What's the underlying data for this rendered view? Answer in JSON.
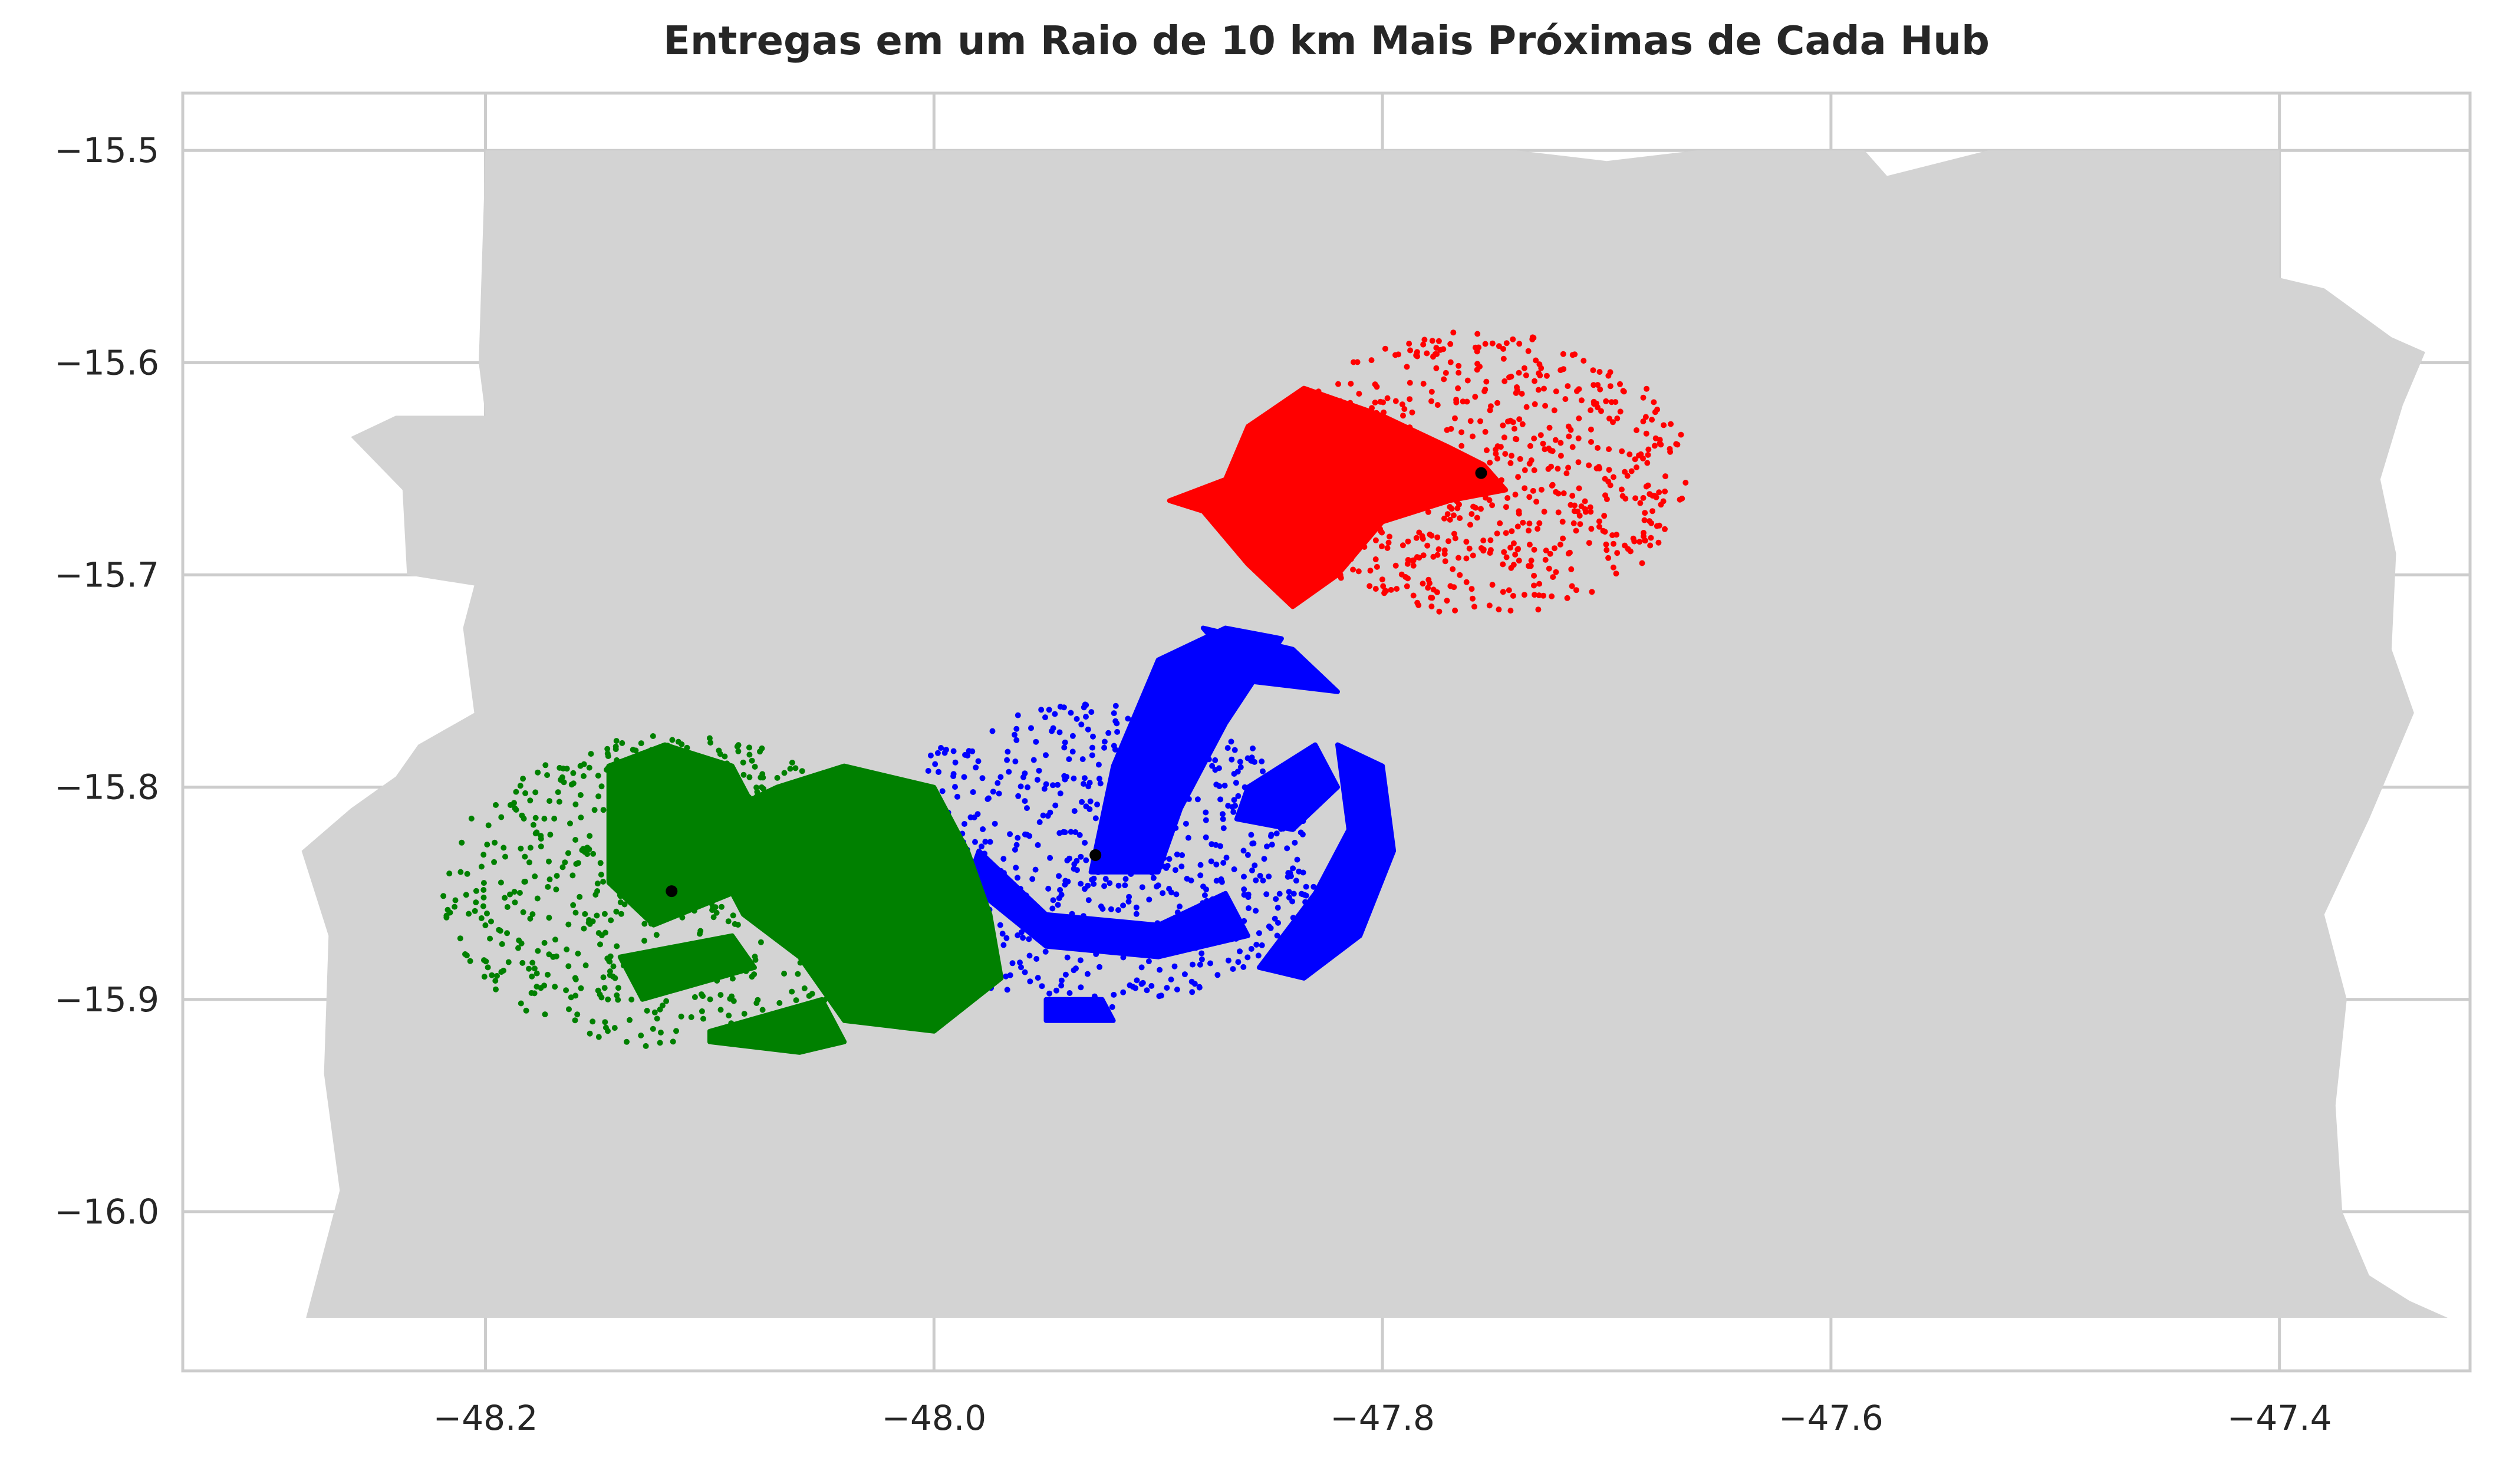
{
  "chart_data": {
    "type": "scatter",
    "title": "Entregas em um Raio de 10 km Mais Próximas de Cada Hub",
    "xlabel": "",
    "ylabel": "",
    "xlim": [
      -48.335,
      -47.315
    ],
    "ylim": [
      -16.075,
      -15.473
    ],
    "x_ticks": [
      -48.2,
      -48.0,
      -47.8,
      -47.6,
      -47.4
    ],
    "x_tick_labels": [
      "−48.2",
      "−48.0",
      "−47.8",
      "−47.6",
      "−47.4"
    ],
    "y_ticks": [
      -15.5,
      -15.6,
      -15.7,
      -15.8,
      -15.9,
      -16.0
    ],
    "y_tick_labels": [
      "−15.5",
      "−15.6",
      "−15.7",
      "−15.8",
      "−15.9",
      "−16.0"
    ],
    "grid": true,
    "region": {
      "color": "#d3d3d3",
      "boundary": [
        [
          -48.2,
          -15.5
        ],
        [
          -47.74,
          -15.5
        ],
        [
          -47.7,
          -15.505
        ],
        [
          -47.66,
          -15.5
        ],
        [
          -47.585,
          -15.5
        ],
        [
          -47.575,
          -15.512
        ],
        [
          -47.53,
          -15.5
        ],
        [
          -47.4,
          -15.5
        ],
        [
          -47.4,
          -15.56
        ],
        [
          -47.38,
          -15.565
        ],
        [
          -47.35,
          -15.588
        ],
        [
          -47.335,
          -15.595
        ],
        [
          -47.345,
          -15.62
        ],
        [
          -47.355,
          -15.655
        ],
        [
          -47.348,
          -15.69
        ],
        [
          -47.35,
          -15.735
        ],
        [
          -47.34,
          -15.765
        ],
        [
          -47.36,
          -15.815
        ],
        [
          -47.38,
          -15.86
        ],
        [
          -47.37,
          -15.9
        ],
        [
          -47.375,
          -15.95
        ],
        [
          -47.372,
          -16.0
        ],
        [
          -47.36,
          -16.03
        ],
        [
          -47.342,
          -16.042
        ],
        [
          -47.325,
          -16.05
        ],
        [
          -48.28,
          -16.05
        ],
        [
          -48.265,
          -15.99
        ],
        [
          -48.272,
          -15.935
        ],
        [
          -48.27,
          -15.87
        ],
        [
          -48.282,
          -15.83
        ],
        [
          -48.26,
          -15.81
        ],
        [
          -48.24,
          -15.795
        ],
        [
          -48.23,
          -15.78
        ],
        [
          -48.205,
          -15.765
        ],
        [
          -48.21,
          -15.725
        ],
        [
          -48.205,
          -15.705
        ],
        [
          -48.235,
          -15.7
        ],
        [
          -48.237,
          -15.66
        ],
        [
          -48.26,
          -15.635
        ],
        [
          -48.24,
          -15.625
        ],
        [
          -48.2,
          -15.625
        ],
        [
          -48.203,
          -15.6
        ]
      ]
    },
    "series": [
      {
        "color": "#ff0000",
        "hub": [
          -47.756,
          -15.652
        ],
        "radius": 0.093,
        "dense_area": [
          [
            -47.87,
            -15.655
          ],
          [
            -47.86,
            -15.63
          ],
          [
            -47.835,
            -15.612
          ],
          [
            -47.8,
            -15.625
          ],
          [
            -47.77,
            -15.64
          ],
          [
            -47.755,
            -15.648
          ],
          [
            -47.745,
            -15.66
          ],
          [
            -47.77,
            -15.665
          ],
          [
            -47.8,
            -15.675
          ],
          [
            -47.82,
            -15.7
          ],
          [
            -47.84,
            -15.715
          ],
          [
            -47.86,
            -15.695
          ],
          [
            -47.88,
            -15.67
          ],
          [
            -47.895,
            -15.665
          ]
        ]
      },
      {
        "color": "#0000ff",
        "hub": [
          -47.928,
          -15.832
        ],
        "radius": 0.1,
        "blobs": [
          [
            [
              -47.93,
              -15.84
            ],
            [
              -47.92,
              -15.79
            ],
            [
              -47.9,
              -15.74
            ],
            [
              -47.87,
              -15.725
            ],
            [
              -47.845,
              -15.73
            ],
            [
              -47.87,
              -15.77
            ],
            [
              -47.89,
              -15.81
            ],
            [
              -47.9,
              -15.84
            ]
          ],
          [
            [
              -47.88,
              -15.725
            ],
            [
              -47.84,
              -15.735
            ],
            [
              -47.82,
              -15.755
            ],
            [
              -47.86,
              -15.75
            ]
          ],
          [
            [
              -47.86,
              -15.8
            ],
            [
              -47.83,
              -15.78
            ],
            [
              -47.82,
              -15.8
            ],
            [
              -47.84,
              -15.82
            ],
            [
              -47.865,
              -15.815
            ]
          ],
          [
            [
              -47.82,
              -15.78
            ],
            [
              -47.8,
              -15.79
            ],
            [
              -47.795,
              -15.83
            ],
            [
              -47.81,
              -15.87
            ],
            [
              -47.835,
              -15.89
            ],
            [
              -47.855,
              -15.885
            ],
            [
              -47.83,
              -15.85
            ],
            [
              -47.815,
              -15.82
            ]
          ],
          [
            [
              -47.98,
              -15.83
            ],
            [
              -47.95,
              -15.86
            ],
            [
              -47.9,
              -15.865
            ],
            [
              -47.87,
              -15.85
            ],
            [
              -47.86,
              -15.87
            ],
            [
              -47.9,
              -15.88
            ],
            [
              -47.95,
              -15.875
            ],
            [
              -47.985,
              -15.845
            ]
          ],
          [
            [
              -47.95,
              -15.9
            ],
            [
              -47.925,
              -15.9
            ],
            [
              -47.92,
              -15.91
            ],
            [
              -47.95,
              -15.91
            ]
          ]
        ]
      },
      {
        "color": "#008000",
        "hub": [
          -48.117,
          -15.849
        ],
        "radius": 0.102,
        "blobs": [
          [
            [
              -48.145,
              -15.79
            ],
            [
              -48.12,
              -15.78
            ],
            [
              -48.09,
              -15.79
            ],
            [
              -48.075,
              -15.82
            ],
            [
              -48.09,
              -15.85
            ],
            [
              -48.125,
              -15.865
            ],
            [
              -48.145,
              -15.845
            ]
          ],
          [
            [
              -48.1,
              -15.815
            ],
            [
              -48.07,
              -15.8
            ],
            [
              -48.04,
              -15.79
            ],
            [
              -48.0,
              -15.8
            ],
            [
              -47.985,
              -15.83
            ],
            [
              -47.975,
              -15.86
            ],
            [
              -47.97,
              -15.89
            ],
            [
              -48.0,
              -15.915
            ],
            [
              -48.04,
              -15.91
            ],
            [
              -48.06,
              -15.88
            ],
            [
              -48.085,
              -15.86
            ],
            [
              -48.095,
              -15.84
            ]
          ],
          [
            [
              -48.14,
              -15.88
            ],
            [
              -48.09,
              -15.87
            ],
            [
              -48.08,
              -15.885
            ],
            [
              -48.13,
              -15.9
            ]
          ],
          [
            [
              -48.1,
              -15.915
            ],
            [
              -48.05,
              -15.9
            ],
            [
              -48.04,
              -15.92
            ],
            [
              -48.06,
              -15.925
            ],
            [
              -48.1,
              -15.92
            ]
          ]
        ]
      }
    ]
  }
}
